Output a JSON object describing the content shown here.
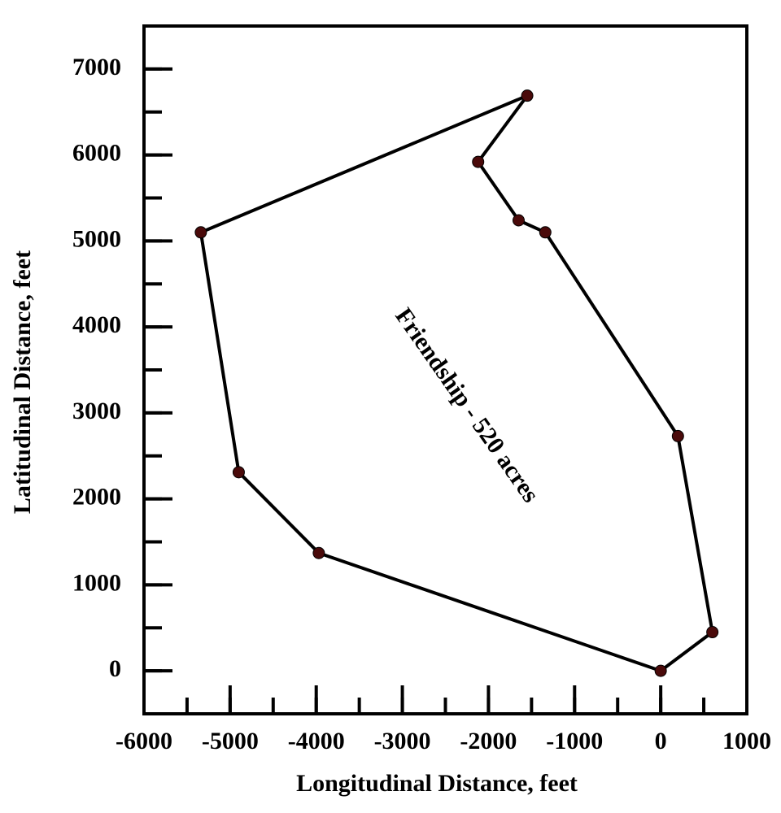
{
  "chart_data": {
    "type": "polygon",
    "annotation": "Friendship - 520 acres",
    "x_label": "Longitudinal Distance, feet",
    "y_label": "Latitudinal Distance, feet",
    "x": [
      0,
      600,
      200,
      -1340,
      -1650,
      -2120,
      -1550,
      -5340,
      -4900,
      -3970
    ],
    "values": [
      0,
      450,
      2730,
      5100,
      5240,
      5920,
      6690,
      5100,
      2310,
      1370
    ],
    "closed": true,
    "line_color": "#000000",
    "marker_color": "#4a0a0a",
    "xlim": [
      -6000,
      1000
    ],
    "xticks": [
      -6000,
      -5000,
      -4000,
      -3000,
      -2000,
      -1000,
      0,
      1000
    ],
    "ylim": [
      -500,
      7500
    ],
    "yticks": [
      0,
      1000,
      2000,
      3000,
      4000,
      5000,
      6000,
      7000
    ],
    "minor_step": 500
  }
}
